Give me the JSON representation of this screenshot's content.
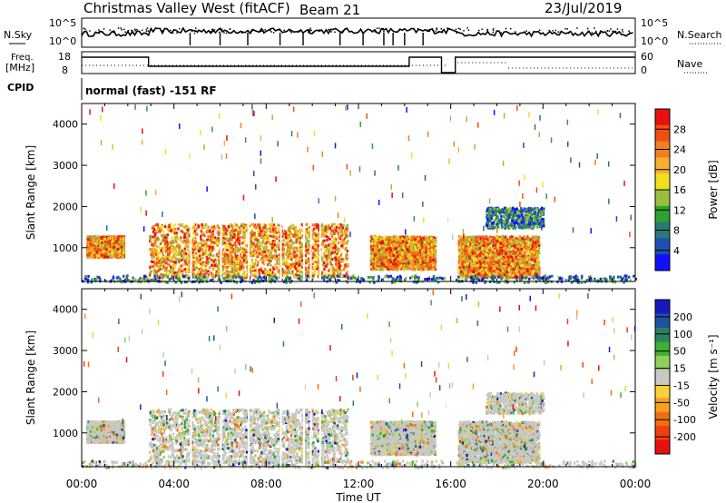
{
  "header": {
    "title": "Christmas Valley West (fitACF)",
    "beam": "Beam 21",
    "date": "23/Jul/2019"
  },
  "panels": {
    "nsky": {
      "label": "N.Sky",
      "tick_top": "10^5",
      "tick_bottom": "10^0",
      "right_label": "N.Search",
      "right_tick_top": "10^5",
      "right_tick_bottom": "10^0"
    },
    "freq": {
      "label_line1": "Freq.",
      "label_line2": "[MHz]",
      "tick_top": "18",
      "tick_bottom": "8",
      "right_label": "Nave",
      "right_tick_top": "60",
      "right_tick_bottom": "0"
    },
    "cpid": {
      "label": "CPID",
      "value": "normal (fast) -151 RF"
    }
  },
  "chart_data": [
    {
      "type": "heatmap",
      "name": "power",
      "ylabel": "Slant Range [km]",
      "xlabel": "Time UT",
      "x_ticks": [
        "00:00",
        "04:00",
        "08:00",
        "12:00",
        "16:00",
        "20:00",
        "00:00"
      ],
      "x_hours": [
        0,
        4,
        8,
        12,
        16,
        20,
        24
      ],
      "y_ticks": [
        1000,
        2000,
        3000,
        4000
      ],
      "ylim": [
        180,
        4500
      ],
      "colorbar": {
        "label": "Power [dB]",
        "ticks": [
          "4",
          "8",
          "12",
          "16",
          "20",
          "24",
          "28"
        ]
      },
      "colors": [
        "#1010ff",
        "#2050b0",
        "#287878",
        "#30a030",
        "#98c040",
        "#f0e020",
        "#f8b030",
        "#f08020",
        "#f05010",
        "#e81010"
      ],
      "echo_regions": [
        {
          "t_start": 0.2,
          "t_end": 1.8,
          "r_start": 800,
          "r_end": 1300,
          "level": "strong"
        },
        {
          "t_start": 2.9,
          "t_end": 11.5,
          "r_start": 300,
          "r_end": 1600,
          "level": "strong"
        },
        {
          "t_start": 12.5,
          "t_end": 15.3,
          "r_start": 500,
          "r_end": 1300,
          "level": "strong"
        },
        {
          "t_start": 16.3,
          "t_end": 19.8,
          "r_start": 300,
          "r_end": 1300,
          "level": "strong"
        },
        {
          "t_start": 17.5,
          "t_end": 20.0,
          "r_start": 1500,
          "r_end": 2000,
          "level": "weak"
        },
        {
          "t_start": 0.0,
          "t_end": 24.0,
          "r_start": 180,
          "r_end": 350,
          "level": "weak"
        }
      ]
    },
    {
      "type": "heatmap",
      "name": "velocity",
      "ylabel": "Slant Range [km]",
      "xlabel": "Time UT",
      "x_ticks": [
        "00:00",
        "04:00",
        "08:00",
        "12:00",
        "16:00",
        "20:00",
        "00:00"
      ],
      "x_hours": [
        0,
        4,
        8,
        12,
        16,
        20,
        24
      ],
      "y_ticks": [
        1000,
        2000,
        3000,
        4000
      ],
      "ylim": [
        180,
        4500
      ],
      "colorbar": {
        "label": "Velocity [m s⁻¹]",
        "ticks": [
          "200",
          "100",
          "50",
          "15",
          "-15",
          "-50",
          "-100",
          "-200"
        ]
      },
      "colors": [
        "#1818c0",
        "#2050a0",
        "#288060",
        "#40b030",
        "#90d060",
        "#c8c8c8",
        "#f8d040",
        "#f8a020",
        "#f07010",
        "#f04010",
        "#e81010"
      ]
    }
  ]
}
